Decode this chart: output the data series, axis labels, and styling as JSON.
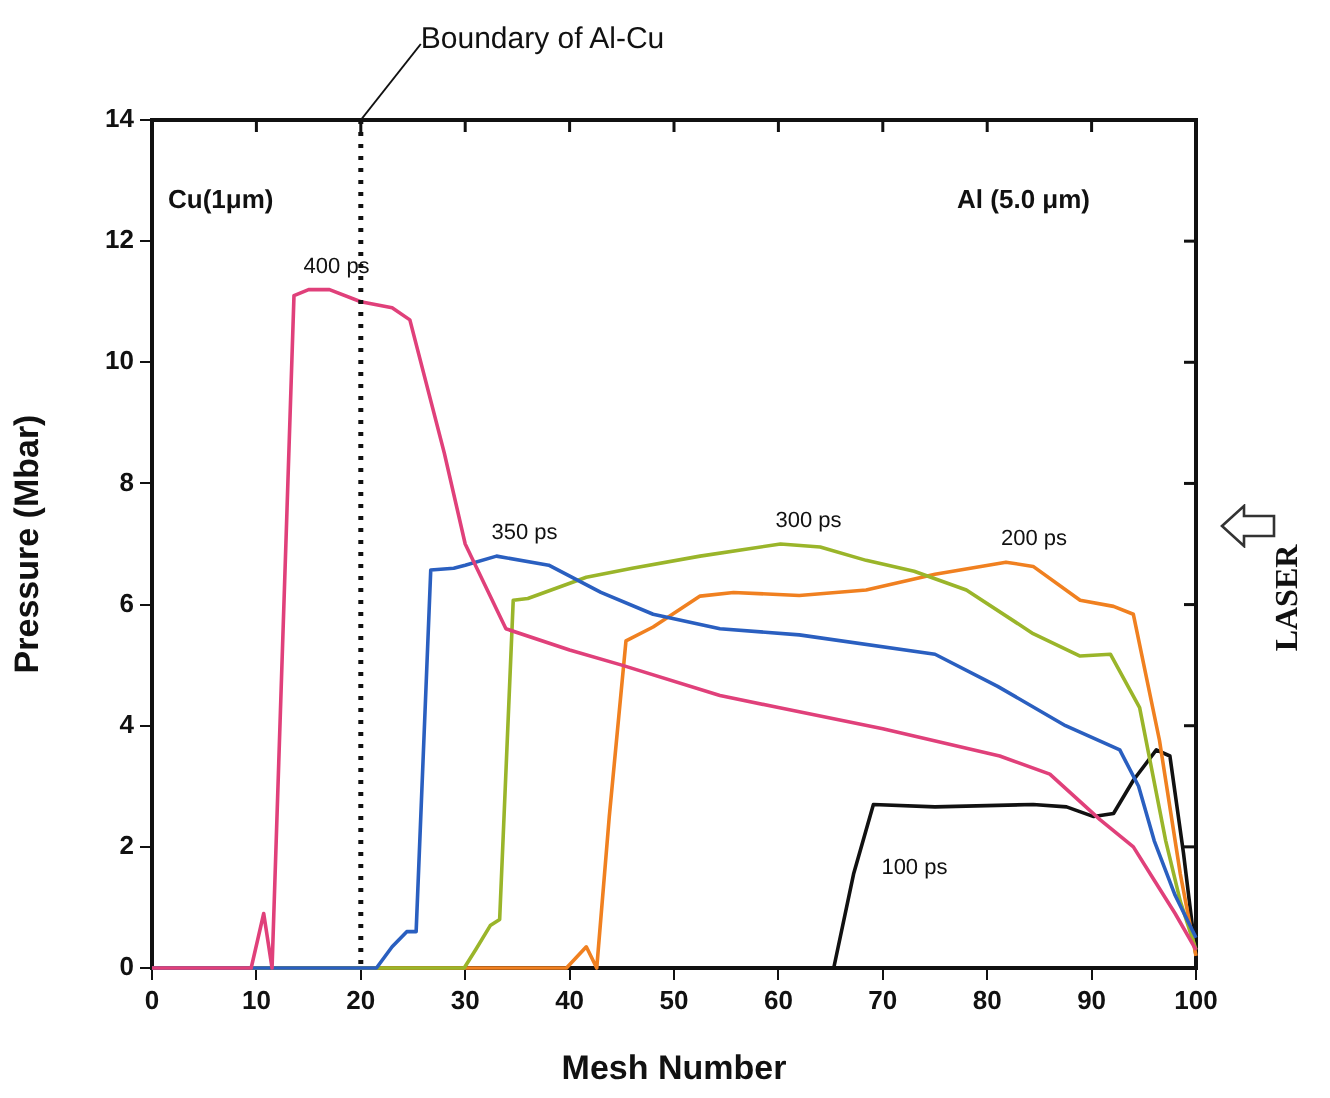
{
  "chart_data": {
    "type": "line",
    "xlabel": "Mesh Number",
    "ylabel": "Pressure (Mbar)",
    "xlim": [
      0,
      100
    ],
    "xticks": [
      0,
      10,
      20,
      30,
      40,
      50,
      60,
      70,
      80,
      90,
      100
    ],
    "ylim": [
      0,
      14
    ],
    "yticks": [
      0,
      2,
      4,
      6,
      8,
      10,
      12,
      14
    ],
    "grid": false,
    "legend": false,
    "marker": "none",
    "line_style": "solid",
    "ref_lines": [
      {
        "axis": "x",
        "value": 20,
        "label": "Boundary of Al-Cu",
        "line_style": "dotted",
        "color": "#111111"
      }
    ],
    "annotations": [
      "Cu(1μm)",
      "Al (5.0 μm)",
      "LASER"
    ],
    "series": [
      {
        "name": "400 ps",
        "color": "#e0407a",
        "x": [
          0,
          9.5,
          10.7,
          11.5,
          13.6,
          15,
          17,
          20,
          23,
          24.7,
          28,
          30,
          33.9,
          40,
          45,
          54.4,
          60,
          70,
          81.2,
          86,
          90.8,
          94,
          96,
          98,
          100
        ],
        "values": [
          0,
          0,
          0.9,
          0,
          11.1,
          11.2,
          11.2,
          11.0,
          10.9,
          10.7,
          8.5,
          7.0,
          5.6,
          5.25,
          5.0,
          4.5,
          4.3,
          3.95,
          3.5,
          3.2,
          2.45,
          2.0,
          1.45,
          0.9,
          0.3
        ]
      },
      {
        "name": "350 ps",
        "color": "#2a5fc0",
        "x": [
          0,
          21.5,
          23,
          24.4,
          25.3,
          26.7,
          28.9,
          30,
          33,
          38,
          43,
          48,
          54.4,
          62,
          75,
          81,
          87.5,
          92.7,
          94.5,
          96,
          98,
          100
        ],
        "values": [
          0,
          0,
          0.35,
          0.6,
          0.6,
          6.57,
          6.6,
          6.65,
          6.8,
          6.65,
          6.2,
          5.84,
          5.6,
          5.5,
          5.18,
          4.65,
          4.0,
          3.6,
          3.0,
          2.1,
          1.2,
          0.5
        ]
      },
      {
        "name": "300 ps",
        "color": "#9ab52a",
        "x": [
          0,
          29.9,
          31,
          32.4,
          33.3,
          34.6,
          36,
          41.6,
          46,
          52.5,
          60.2,
          64,
          68.4,
          73,
          78,
          84.4,
          88.9,
          91.8,
          94.6,
          97.1,
          98.5,
          100
        ],
        "values": [
          0,
          0,
          0.3,
          0.7,
          0.8,
          6.07,
          6.1,
          6.45,
          6.6,
          6.8,
          7.0,
          6.95,
          6.73,
          6.55,
          6.24,
          5.52,
          5.15,
          5.18,
          4.3,
          2.1,
          1.1,
          0.3
        ]
      },
      {
        "name": "200 ps",
        "color": "#f08020",
        "x": [
          0,
          39.7,
          41.6,
          42.6,
          43.8,
          45.4,
          48,
          52.5,
          55.7,
          62,
          68.4,
          75,
          81.8,
          84.4,
          88.9,
          92.1,
          94,
          96.5,
          98.5,
          100
        ],
        "values": [
          0,
          0,
          0.35,
          0,
          2.5,
          5.4,
          5.63,
          6.14,
          6.2,
          6.15,
          6.24,
          6.5,
          6.7,
          6.63,
          6.07,
          5.97,
          5.84,
          3.76,
          1.55,
          0.2
        ]
      },
      {
        "name": "100 ps",
        "color": "#111111",
        "x": [
          0,
          65.3,
          67.2,
          69.1,
          75,
          84.4,
          87.6,
          90.2,
          92.1,
          94,
          96.2,
          97.5,
          98.8,
          100
        ],
        "values": [
          0,
          0,
          1.55,
          2.7,
          2.66,
          2.7,
          2.66,
          2.5,
          2.55,
          3.1,
          3.6,
          3.5,
          1.9,
          0.2
        ]
      }
    ]
  }
}
